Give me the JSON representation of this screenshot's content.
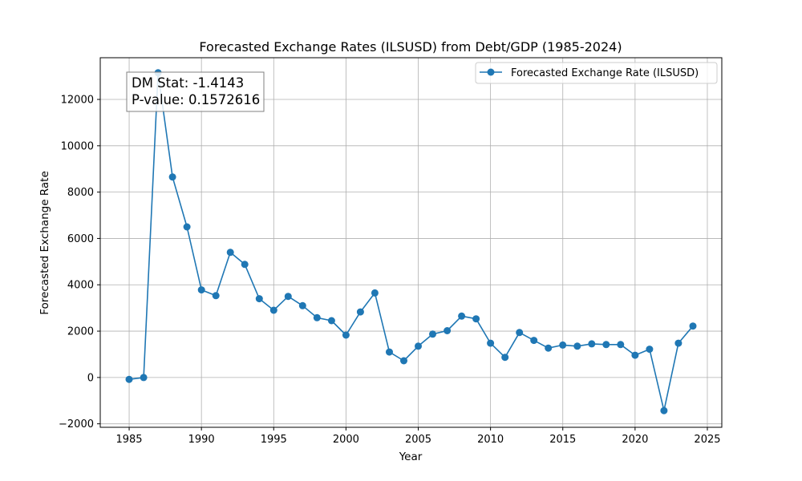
{
  "chart_data": {
    "type": "line",
    "title": "Forecasted Exchange Rates (ILSUSD) from Debt/GDP (1985-2024)",
    "xlabel": "Year",
    "ylabel": "Forecasted Exchange Rate",
    "xlim": [
      1983,
      2026
    ],
    "ylim": [
      -2150,
      13800
    ],
    "xticks": [
      1985,
      1990,
      1995,
      2000,
      2005,
      2010,
      2015,
      2020,
      2025
    ],
    "yticks": [
      -2000,
      0,
      2000,
      4000,
      6000,
      8000,
      10000,
      12000
    ],
    "ytick_labels": [
      "−2000",
      "0",
      "2000",
      "4000",
      "6000",
      "8000",
      "10000",
      "12000"
    ],
    "grid": true,
    "legend_position": "top-right",
    "series": [
      {
        "name": "Forecasted Exchange Rate (ILSUSD)",
        "color": "#1f77b4",
        "x": [
          1985,
          1986,
          1987,
          1988,
          1989,
          1990,
          1991,
          1992,
          1993,
          1994,
          1995,
          1996,
          1997,
          1998,
          1999,
          2000,
          2001,
          2002,
          2003,
          2004,
          2005,
          2006,
          2007,
          2008,
          2009,
          2010,
          2011,
          2012,
          2013,
          2014,
          2015,
          2016,
          2017,
          2018,
          2019,
          2020,
          2021,
          2022,
          2023,
          2024
        ],
        "y": [
          -80,
          0,
          13150,
          8650,
          6500,
          3780,
          3530,
          5400,
          4880,
          3400,
          2900,
          3500,
          3100,
          2580,
          2450,
          1830,
          2830,
          3650,
          1100,
          720,
          1350,
          1870,
          2020,
          2650,
          2530,
          1480,
          870,
          1940,
          1600,
          1270,
          1400,
          1350,
          1450,
          1420,
          1420,
          960,
          1220,
          -1430,
          1480,
          2220
        ]
      }
    ],
    "annotation": {
      "lines": [
        "DM Stat: -1.4143",
        "P-value: 0.1572616"
      ],
      "position": "top-left"
    }
  }
}
